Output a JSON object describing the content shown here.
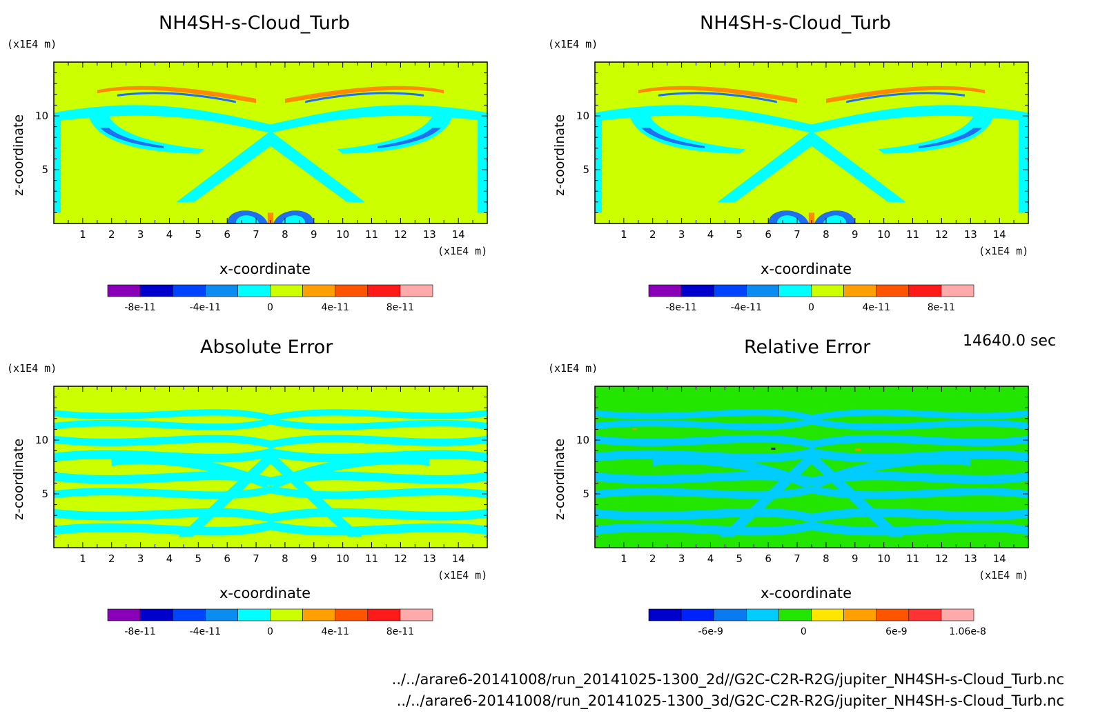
{
  "time_label": "14640.0 sec",
  "file_paths": [
    "../../arare6-20141008/run_20141025-1300_2d//G2C-C2R-R2G/jupiter_NH4SH-s-Cloud_Turb.nc",
    "../../arare6-20141008/run_20141025-1300_3d/G2C-C2R-R2G/jupiter_NH4SH-s-Cloud_Turb.nc"
  ],
  "chart_data": [
    {
      "type": "heatmap",
      "title": "NH4SH-s-Cloud_Turb",
      "xlabel": "x-coordinate",
      "ylabel": "z-coordinate",
      "x_unit": "(x1E4 m)",
      "z_unit": "(x1E4 m)",
      "x_ticks": [
        1,
        2,
        3,
        4,
        5,
        6,
        7,
        8,
        9,
        10,
        11,
        12,
        13,
        14
      ],
      "z_ticks": [
        5,
        10
      ],
      "xlim": [
        0,
        15
      ],
      "zlim": [
        0,
        15
      ],
      "background_color": "#ccff00",
      "pattern_color": "#00ffff",
      "detail_color": "#1f6ff0",
      "accent_color": "#ff8a00",
      "colorbar": {
        "colors": [
          "#8a00b8",
          "#0000cc",
          "#0044ff",
          "#0a8cf0",
          "#00ffff",
          "#ccff00",
          "#ffa000",
          "#ff5500",
          "#ff1a1a",
          "#ffaaaa"
        ],
        "tick_labels": [
          "-8e-11",
          "-4e-11",
          "0",
          "4e-11",
          "8e-11"
        ],
        "tick_values": [
          -8e-11,
          -4e-11,
          0,
          4e-11,
          8e-11
        ],
        "range": [
          -1e-10,
          1e-10
        ]
      }
    },
    {
      "type": "heatmap",
      "title": "NH4SH-s-Cloud_Turb",
      "xlabel": "x-coordinate",
      "ylabel": "z-coordinate",
      "x_unit": "(x1E4 m)",
      "z_unit": "(x1E4 m)",
      "x_ticks": [
        1,
        2,
        3,
        4,
        5,
        6,
        7,
        8,
        9,
        10,
        11,
        12,
        13,
        14
      ],
      "z_ticks": [
        5,
        10
      ],
      "xlim": [
        0,
        15
      ],
      "zlim": [
        0,
        15
      ],
      "background_color": "#ccff00",
      "pattern_color": "#00ffff",
      "detail_color": "#1f6ff0",
      "accent_color": "#ff8a00",
      "colorbar": {
        "colors": [
          "#8a00b8",
          "#0000cc",
          "#0044ff",
          "#0a8cf0",
          "#00ffff",
          "#ccff00",
          "#ffa000",
          "#ff5500",
          "#ff1a1a",
          "#ffaaaa"
        ],
        "tick_labels": [
          "-8e-11",
          "-4e-11",
          "0",
          "4e-11",
          "8e-11"
        ],
        "tick_values": [
          -8e-11,
          -4e-11,
          0,
          4e-11,
          8e-11
        ],
        "range": [
          -1e-10,
          1e-10
        ]
      }
    },
    {
      "type": "heatmap",
      "title": "Absolute Error",
      "xlabel": "x-coordinate",
      "ylabel": "z-coordinate",
      "x_unit": "(x1E4 m)",
      "z_unit": "(x1E4 m)",
      "x_ticks": [
        1,
        2,
        3,
        4,
        5,
        6,
        7,
        8,
        9,
        10,
        11,
        12,
        13,
        14
      ],
      "z_ticks": [
        5,
        10
      ],
      "xlim": [
        0,
        15
      ],
      "zlim": [
        0,
        15
      ],
      "background_color": "#ccff00",
      "pattern_color": "#00ffff",
      "detail_color": "#00ffff",
      "accent_color": "#ccff00",
      "colorbar": {
        "colors": [
          "#8a00b8",
          "#0000cc",
          "#0044ff",
          "#0a8cf0",
          "#00ffff",
          "#ccff00",
          "#ffa000",
          "#ff5500",
          "#ff1a1a",
          "#ffaaaa"
        ],
        "tick_labels": [
          "-8e-11",
          "-4e-11",
          "0",
          "4e-11",
          "8e-11"
        ],
        "tick_values": [
          -8e-11,
          -4e-11,
          0,
          4e-11,
          8e-11
        ],
        "range": [
          -1e-10,
          1e-10
        ]
      }
    },
    {
      "type": "heatmap",
      "title": "Relative Error",
      "xlabel": "x-coordinate",
      "ylabel": "z-coordinate",
      "x_unit": "(x1E4 m)",
      "z_unit": "(x1E4 m)",
      "x_ticks": [
        1,
        2,
        3,
        4,
        5,
        6,
        7,
        8,
        9,
        10,
        11,
        12,
        13,
        14
      ],
      "z_ticks": [
        5,
        10
      ],
      "xlim": [
        0,
        15
      ],
      "zlim": [
        0,
        15
      ],
      "background_color": "#22e600",
      "pattern_color": "#00ccff",
      "detail_color": "#00ccff",
      "accent_color": "#ff8a00",
      "colorbar": {
        "colors": [
          "#0000cc",
          "#0022ff",
          "#0a7af0",
          "#00ccff",
          "#22e600",
          "#ffe600",
          "#ffa000",
          "#ff5500",
          "#ff3333",
          "#ffaaaa"
        ],
        "tick_labels": [
          "-6e-9",
          "0",
          "6e-9",
          "1.06e-8"
        ],
        "tick_values": [
          -6e-09,
          0,
          6e-09,
          1.06e-08
        ],
        "range": [
          -1e-08,
          1.1e-08
        ]
      }
    }
  ]
}
